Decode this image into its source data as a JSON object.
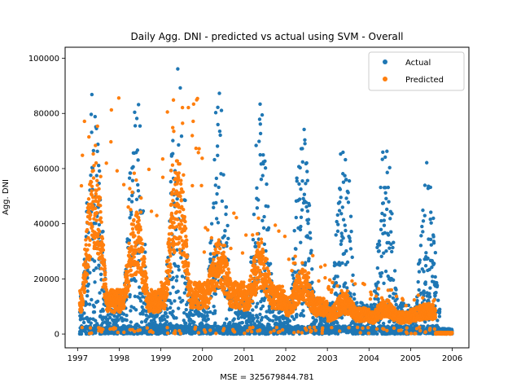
{
  "chart_data": {
    "type": "scatter",
    "title": "Daily Agg. DNI - predicted vs actual using SVM - Overall",
    "xlabel": "MSE = 325679844.781",
    "ylabel": "Agg. DNI",
    "xlim": [
      1996.7,
      2006.4
    ],
    "ylim": [
      -5000,
      104000
    ],
    "xticks": [
      1997,
      1998,
      1999,
      2000,
      2001,
      2002,
      2003,
      2004,
      2005,
      2006
    ],
    "xtick_labels": [
      "1997",
      "1998",
      "1999",
      "2000",
      "2001",
      "2002",
      "2003",
      "2004",
      "2005",
      "2006"
    ],
    "yticks": [
      0,
      20000,
      40000,
      60000,
      80000,
      100000
    ],
    "ytick_labels": [
      "0",
      "20000",
      "40000",
      "60000",
      "80000",
      "100000"
    ],
    "legend": {
      "location": "top-right",
      "entries": [
        "Actual",
        "Predicted"
      ]
    },
    "grid": false,
    "series": [
      {
        "name": "Actual",
        "color": "#1f77b4",
        "marker": "dot",
        "approx_yearly_peak_values": [
          {
            "year": 1997,
            "peak": 96000
          },
          {
            "year": 1998,
            "peak": 91000
          },
          {
            "year": 1999,
            "peak": 98000
          },
          {
            "year": 2000,
            "peak": 92000
          },
          {
            "year": 2001,
            "peak": 88000
          },
          {
            "year": 2002,
            "peak": 80000
          },
          {
            "year": 2003,
            "peak": 76000
          },
          {
            "year": 2004,
            "peak": 75000
          },
          {
            "year": 2005,
            "peak": 63000
          }
        ],
        "end_year": 2006.0
      },
      {
        "name": "Predicted",
        "color": "#ff7f0e",
        "marker": "dot",
        "approx_yearly_peak_values": [
          {
            "year": 1997,
            "peak": 86000
          },
          {
            "year": 1998,
            "peak": 60000
          },
          {
            "year": 1999,
            "peak": 86000
          },
          {
            "year": 2000,
            "peak": 46000
          },
          {
            "year": 2001,
            "peak": 45000
          },
          {
            "year": 2002,
            "peak": 32000
          },
          {
            "year": 2003,
            "peak": 20000
          },
          {
            "year": 2004,
            "peak": 17000
          },
          {
            "year": 2005,
            "peak": 15000
          }
        ],
        "approx_yearly_baseline_values": [
          {
            "year": 1997,
            "base": 12000
          },
          {
            "year": 1998,
            "base": 12000
          },
          {
            "year": 1999,
            "base": 14000
          },
          {
            "year": 2000,
            "base": 14000
          },
          {
            "year": 2001,
            "base": 13000
          },
          {
            "year": 2002,
            "base": 10000
          },
          {
            "year": 2003,
            "base": 7000
          },
          {
            "year": 2004,
            "base": 6000
          },
          {
            "year": 2005,
            "base": 7000
          }
        ],
        "zero_after": 2005.6,
        "end_year": 2006.0
      }
    ]
  }
}
